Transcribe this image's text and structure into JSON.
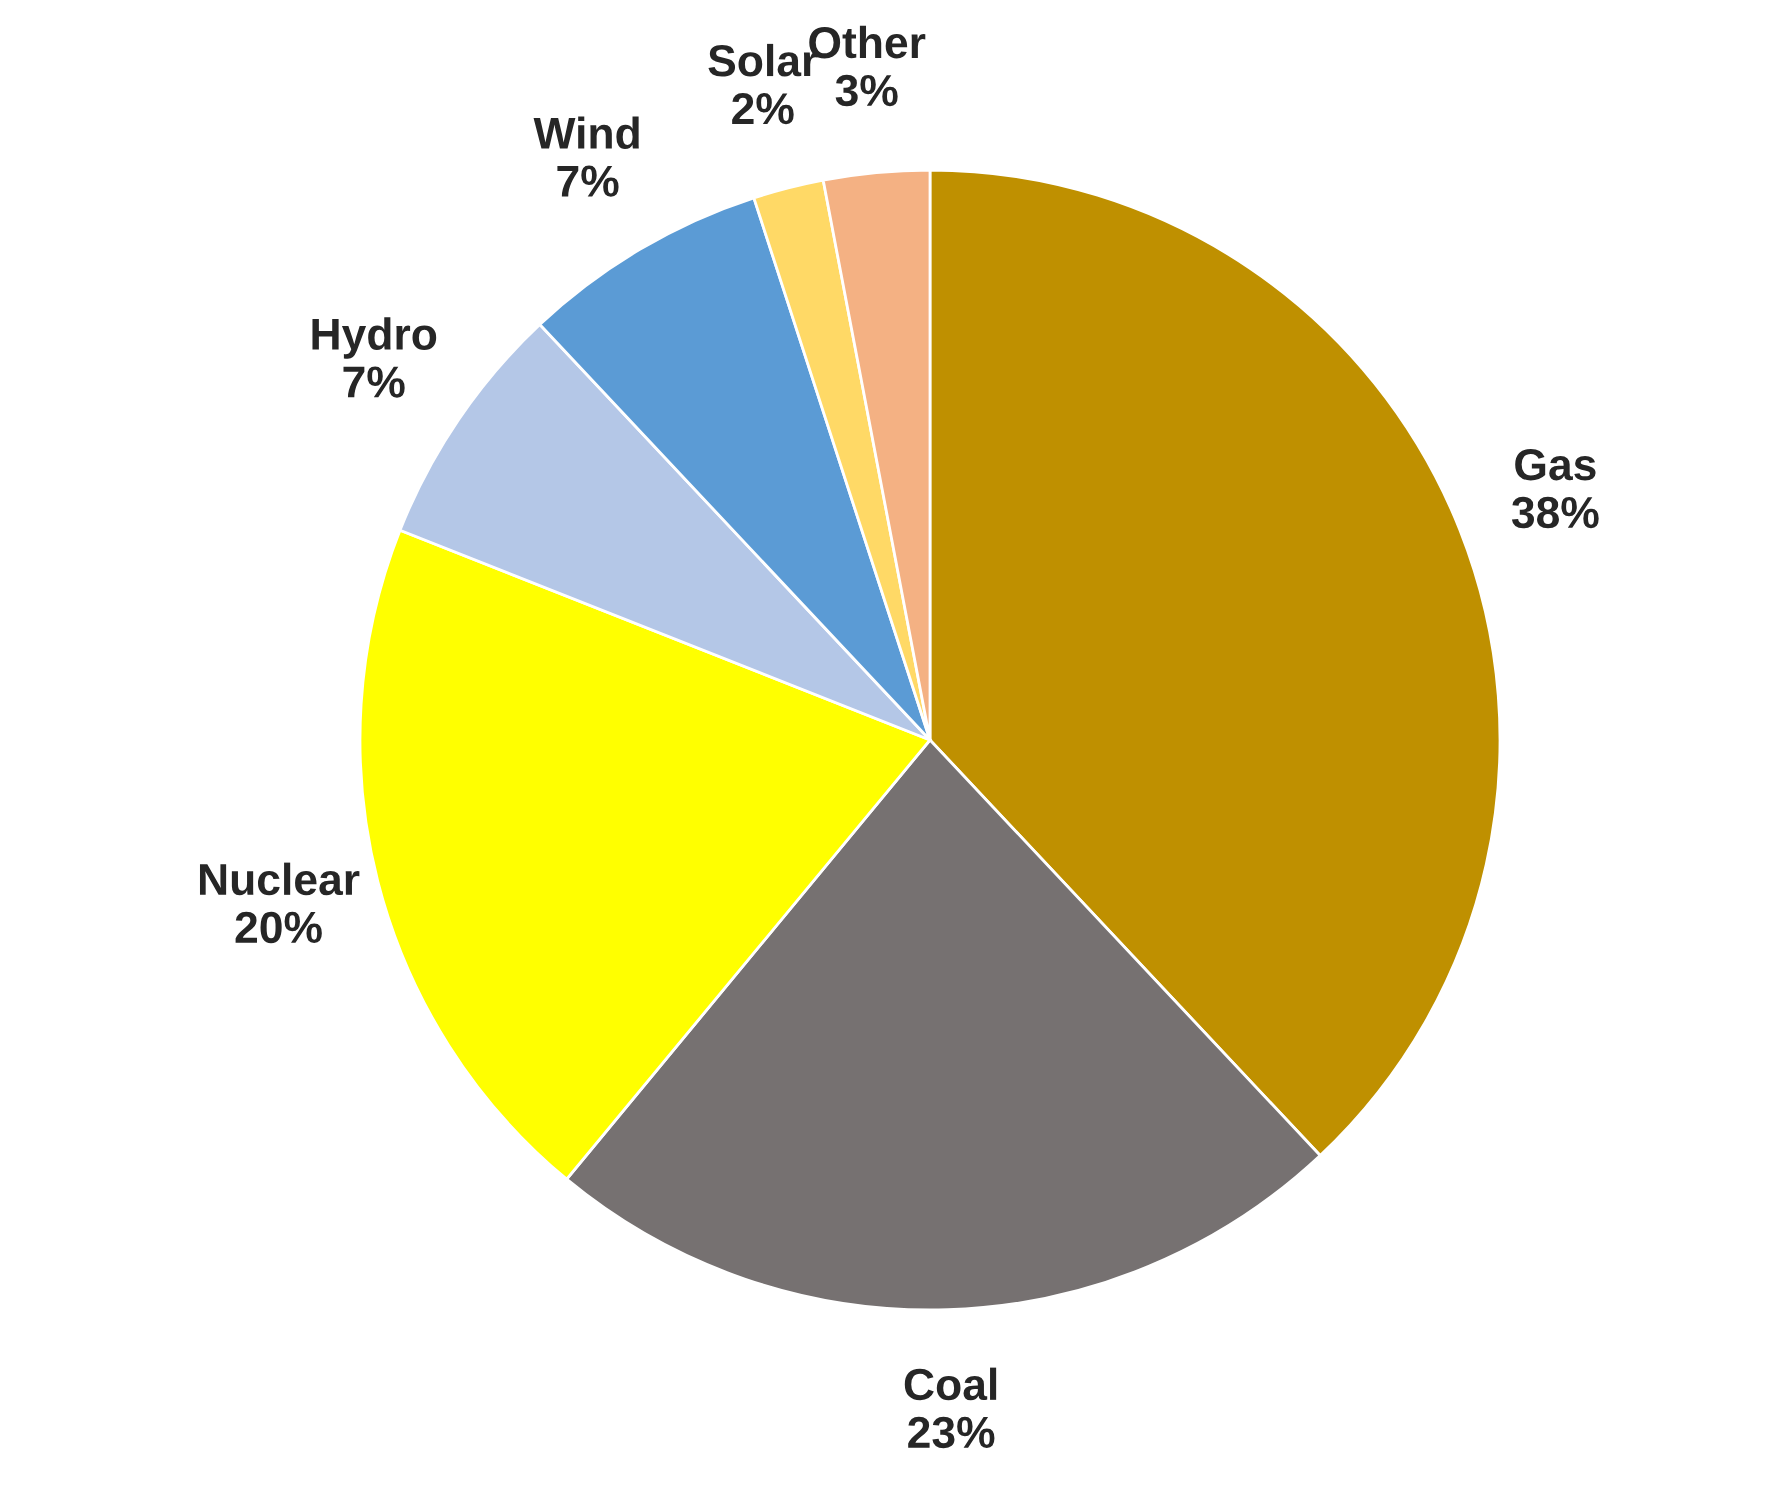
{
  "chart_data": {
    "type": "pie",
    "categories": [
      "Gas",
      "Coal",
      "Nuclear",
      "Hydro",
      "Wind",
      "Solar",
      "Other"
    ],
    "values": [
      38,
      23,
      20,
      7,
      7,
      2,
      3
    ],
    "colors": [
      "#bf9000",
      "#767171",
      "#ffff00",
      "#b4c7e7",
      "#5b9bd5",
      "#ffd966",
      "#f4b183"
    ],
    "value_labels": [
      "38%",
      "23%",
      "20%",
      "7%",
      "7%",
      "2%",
      "3%"
    ]
  }
}
